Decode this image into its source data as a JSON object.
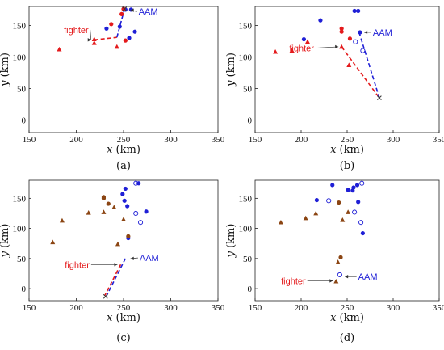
{
  "figure": {
    "panels": [
      "(a)",
      "(b)",
      "(c)",
      "(d)"
    ]
  },
  "chart_data": [
    {
      "type": "scatter",
      "panel": "(a)",
      "xlabel": "x",
      "xunit": " (km)",
      "ylabel": "y",
      "yunit": " (km)",
      "xlim": [
        150,
        350
      ],
      "ylim": [
        -20,
        180
      ],
      "xticks": [
        150,
        200,
        250,
        300,
        350
      ],
      "yticks": [
        0,
        50,
        100,
        150
      ],
      "colors": {
        "red": "#e41a1c",
        "blue": "#1f1fd6",
        "brown": "#8b4513"
      },
      "series": [
        {
          "kind": "blue-dot",
          "points": [
            [
              232,
              145
            ],
            [
              246,
              148
            ],
            [
              252,
              175
            ],
            [
              258,
              175
            ],
            [
              262,
              140
            ],
            [
              256,
              130
            ]
          ]
        },
        {
          "kind": "red-dot",
          "points": [
            [
              237,
              152
            ],
            [
              250,
              176
            ],
            [
              248,
              168
            ],
            [
              252,
              126
            ]
          ]
        },
        {
          "kind": "red-triangle",
          "points": [
            [
              182,
              112
            ],
            [
              219,
              122
            ],
            [
              243,
              116
            ],
            [
              219,
              128
            ]
          ]
        }
      ],
      "paths": [
        {
          "kind": "red-dashed",
          "points": [
            [
              219,
              127
            ],
            [
              243,
              131
            ]
          ]
        },
        {
          "kind": "blue-dashed",
          "points": [
            [
              243,
              131
            ],
            [
              251,
              176
            ]
          ]
        }
      ],
      "markers": [
        {
          "kind": "x",
          "point": [
            251,
            176
          ]
        }
      ],
      "annotations": [
        {
          "text": "fighter",
          "color": "red",
          "at": [
            219,
            127
          ],
          "label": [
            213,
            143
          ]
        },
        {
          "text": "AAM",
          "color": "blue",
          "at": [
            254,
            174
          ],
          "label": [
            266,
            172
          ]
        }
      ]
    },
    {
      "type": "scatter",
      "panel": "(b)",
      "xlabel": "x",
      "xunit": " (km)",
      "ylabel": "y",
      "yunit": " (km)",
      "xlim": [
        150,
        350
      ],
      "ylim": [
        -20,
        180
      ],
      "xticks": [
        150,
        200,
        250,
        300,
        350
      ],
      "yticks": [
        0,
        50,
        100,
        150
      ],
      "colors": {
        "red": "#e41a1c",
        "blue": "#1f1fd6",
        "brown": "#8b4513"
      },
      "series": [
        {
          "kind": "blue-dot",
          "points": [
            [
              221,
              158
            ],
            [
              203,
              128
            ],
            [
              258,
              173
            ],
            [
              262,
              173
            ],
            [
              264,
              139
            ]
          ]
        },
        {
          "kind": "blue-ring",
          "points": [
            [
              259,
              124
            ],
            [
              267,
              110
            ]
          ]
        },
        {
          "kind": "red-dot",
          "points": [
            [
              244,
              145
            ],
            [
              244,
              140
            ],
            [
              253,
              129
            ]
          ]
        },
        {
          "kind": "red-triangle",
          "points": [
            [
              172,
              108
            ],
            [
              190,
              110
            ],
            [
              207,
              124
            ],
            [
              244,
              116
            ],
            [
              252,
              87
            ]
          ]
        }
      ],
      "paths": [
        {
          "kind": "red-dashed",
          "points": [
            [
              244,
              116
            ],
            [
              285,
              35
            ]
          ]
        },
        {
          "kind": "blue-dashed",
          "points": [
            [
              263,
              139
            ],
            [
              285,
              35
            ]
          ]
        }
      ],
      "markers": [
        {
          "kind": "x",
          "point": [
            285,
            35
          ]
        }
      ],
      "annotations": [
        {
          "text": "fighter",
          "color": "red",
          "at": [
            244,
            116
          ],
          "label": [
            214,
            114
          ]
        },
        {
          "text": "AAM",
          "color": "blue",
          "at": [
            265,
            139
          ],
          "label": [
            278,
            139
          ]
        }
      ]
    },
    {
      "type": "scatter",
      "panel": "(c)",
      "xlabel": "x",
      "xunit": " (km)",
      "ylabel": "y",
      "yunit": " (km)",
      "xlim": [
        150,
        350
      ],
      "ylim": [
        -20,
        180
      ],
      "xticks": [
        150,
        200,
        250,
        300,
        350
      ],
      "yticks": [
        0,
        50,
        100,
        150
      ],
      "colors": {
        "red": "#e41a1c",
        "blue": "#1f1fd6",
        "brown": "#8b4513"
      },
      "series": [
        {
          "kind": "blue-dot",
          "points": [
            [
              252,
              166
            ],
            [
              249,
              157
            ],
            [
              251,
              146
            ],
            [
              254,
              137
            ],
            [
              266,
              175
            ],
            [
              274,
              128
            ],
            [
              255,
              84
            ]
          ]
        },
        {
          "kind": "blue-ring",
          "points": [
            [
              263,
              125
            ],
            [
              268,
              110
            ],
            [
              263,
              175
            ]
          ]
        },
        {
          "kind": "brown-dot",
          "points": [
            [
              229,
              152
            ],
            [
              229,
              150
            ],
            [
              234,
              141
            ],
            [
              255,
              87
            ]
          ]
        },
        {
          "kind": "brown-triangle",
          "points": [
            [
              175,
              77
            ],
            [
              185,
              113
            ],
            [
              213,
              126
            ],
            [
              229,
              127
            ],
            [
              244,
              74
            ],
            [
              250,
              115
            ],
            [
              240,
              135
            ]
          ]
        }
      ],
      "paths": [
        {
          "kind": "red-dashed",
          "points": [
            [
              247,
              40
            ],
            [
              230,
              -12
            ]
          ]
        },
        {
          "kind": "blue-dashed",
          "points": [
            [
              252,
              50
            ],
            [
              232,
              -12
            ]
          ]
        }
      ],
      "markers": [
        {
          "kind": "x",
          "point": [
            231,
            -13
          ]
        }
      ],
      "annotations": [
        {
          "text": "fighter",
          "color": "red",
          "at": [
            247,
            40
          ],
          "label": [
            214,
            40
          ]
        },
        {
          "text": "AAM",
          "color": "blue",
          "at": [
            254,
            50
          ],
          "label": [
            267,
            51
          ]
        }
      ]
    },
    {
      "type": "scatter",
      "panel": "(d)",
      "xlabel": "x",
      "xunit": " (km)",
      "ylabel": "y",
      "yunit": " (km)",
      "xlim": [
        150,
        350
      ],
      "ylim": [
        -20,
        180
      ],
      "xticks": [
        150,
        200,
        250,
        300,
        350
      ],
      "yticks": [
        0,
        50,
        100,
        150
      ],
      "colors": {
        "red": "#e41a1c",
        "blue": "#1f1fd6",
        "brown": "#8b4513"
      },
      "series": [
        {
          "kind": "blue-dot",
          "points": [
            [
              217,
              147
            ],
            [
              234,
              172
            ],
            [
              251,
              164
            ],
            [
              256,
              163
            ],
            [
              257,
              168
            ],
            [
              261,
              172
            ],
            [
              262,
              144
            ],
            [
              267,
              92
            ]
          ]
        },
        {
          "kind": "blue-ring",
          "points": [
            [
              230,
              146
            ],
            [
              258,
              127
            ],
            [
              265,
              110
            ],
            [
              266,
              175
            ],
            [
              242,
              23
            ]
          ]
        },
        {
          "kind": "brown-dot",
          "points": [
            [
              241,
              143
            ],
            [
              243,
              52
            ]
          ]
        },
        {
          "kind": "brown-triangle",
          "points": [
            [
              178,
              110
            ],
            [
              205,
              117
            ],
            [
              216,
              125
            ],
            [
              245,
              114
            ],
            [
              251,
              127
            ],
            [
              240,
              44
            ],
            [
              238,
              12
            ]
          ]
        }
      ],
      "paths": [],
      "markers": [],
      "annotations": [
        {
          "text": "fighter",
          "color": "red",
          "at": [
            238,
            13
          ],
          "label": [
            205,
            13
          ]
        },
        {
          "text": "AAM",
          "color": "blue",
          "at": [
            244,
            20
          ],
          "label": [
            262,
            20
          ]
        }
      ]
    }
  ]
}
